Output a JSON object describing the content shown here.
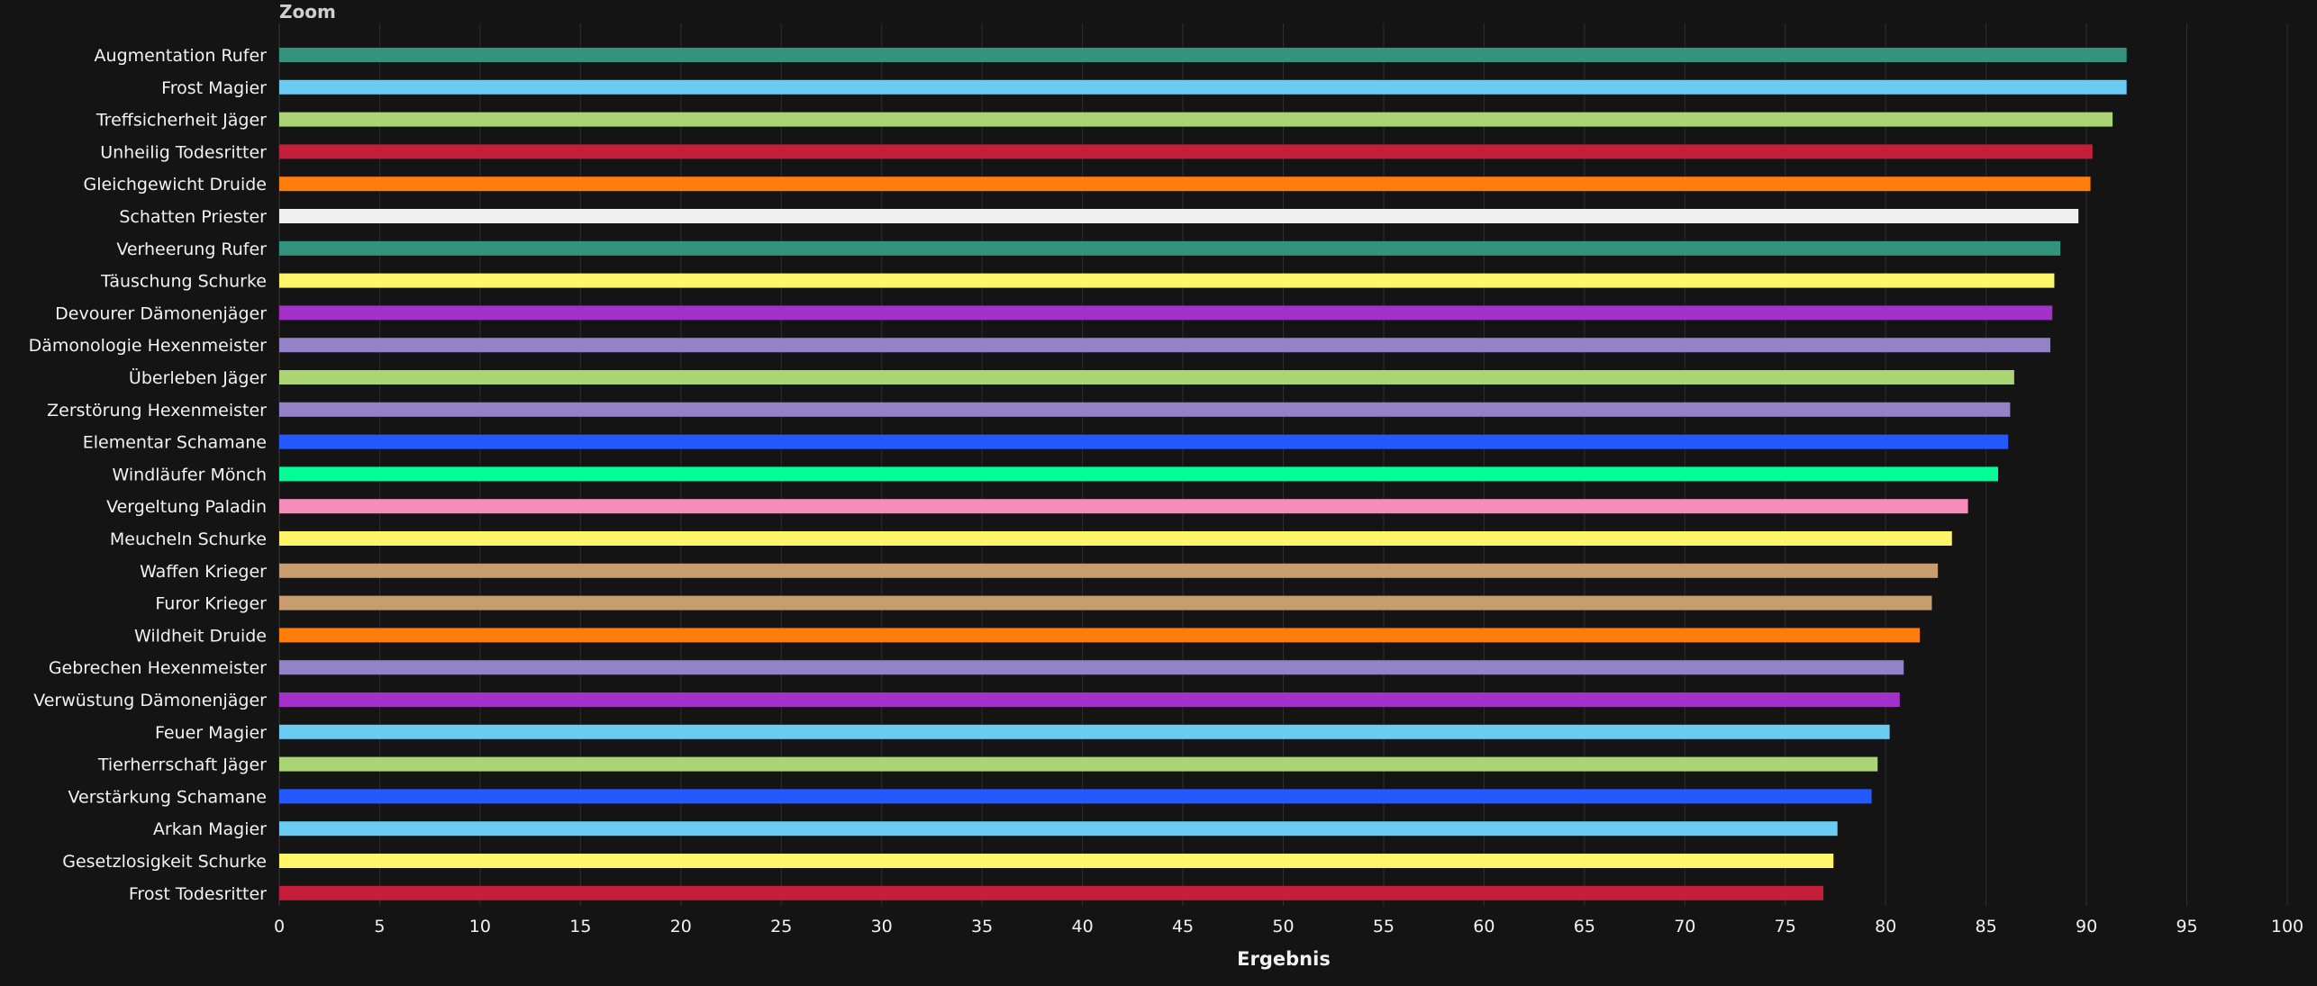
{
  "toolbar": {
    "zoom_label": "Zoom"
  },
  "colors": {
    "background": "#141414",
    "gridline": "#2e2e2e",
    "text": "#f2f2f2"
  },
  "chart_data": {
    "type": "bar",
    "orientation": "horizontal",
    "title": "",
    "xlabel": "Ergebnis",
    "ylabel": "",
    "xlim": [
      0,
      100
    ],
    "xticks": [
      0,
      5,
      10,
      15,
      20,
      25,
      30,
      35,
      40,
      45,
      50,
      55,
      60,
      65,
      70,
      75,
      80,
      85,
      90,
      95,
      100
    ],
    "grid": "vertical",
    "legend": "none",
    "categories": [
      "Augmentation Rufer",
      "Frost Magier",
      "Treffsicherheit Jäger",
      "Unheilig Todesritter",
      "Gleichgewicht Druide",
      "Schatten Priester",
      "Verheerung Rufer",
      "Täuschung Schurke",
      "Devourer Dämonenjäger",
      "Dämonologie Hexenmeister",
      "Überleben Jäger",
      "Zerstörung Hexenmeister",
      "Elementar Schamane",
      "Windläufer Mönch",
      "Vergeltung Paladin",
      "Meucheln Schurke",
      "Waffen Krieger",
      "Furor Krieger",
      "Wildheit Druide",
      "Gebrechen Hexenmeister",
      "Verwüstung Dämonenjäger",
      "Feuer Magier",
      "Tierherrschaft Jäger",
      "Verstärkung Schamane",
      "Arkan Magier",
      "Gesetzlosigkeit Schurke",
      "Frost Todesritter"
    ],
    "values": [
      92.0,
      92.0,
      91.3,
      90.3,
      90.2,
      89.6,
      88.7,
      88.4,
      88.3,
      88.2,
      86.4,
      86.2,
      86.1,
      85.6,
      84.1,
      83.3,
      82.6,
      82.3,
      81.7,
      80.9,
      80.7,
      80.2,
      79.6,
      79.3,
      77.6,
      77.4,
      76.9
    ],
    "bar_colors": [
      "#33937f",
      "#69ccf0",
      "#abd473",
      "#c41e3a",
      "#ff7d0a",
      "#f0f0f0",
      "#33937f",
      "#fff569",
      "#a330c9",
      "#9482c9",
      "#abd473",
      "#9482c9",
      "#2459ff",
      "#00ff96",
      "#f58cba",
      "#fff569",
      "#c79c6e",
      "#c79c6e",
      "#ff7d0a",
      "#9482c9",
      "#a330c9",
      "#69ccf0",
      "#abd473",
      "#2459ff",
      "#69ccf0",
      "#fff569",
      "#c41e3a"
    ]
  }
}
